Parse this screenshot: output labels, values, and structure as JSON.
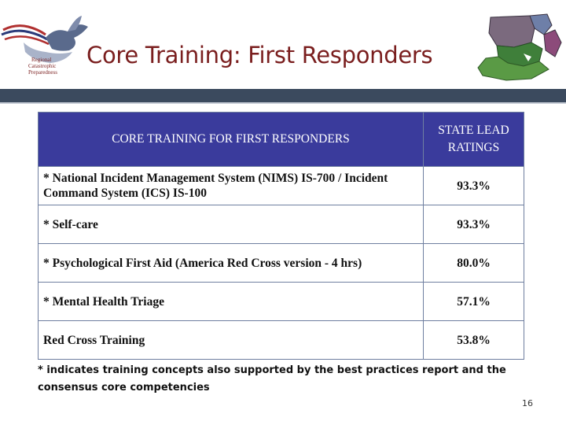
{
  "logo": {
    "lines": [
      "Regional",
      "Catastrophic",
      "Preparedness"
    ]
  },
  "title": "Core Training: First Responders",
  "table": {
    "headers": [
      "CORE TRAINING  FOR FIRST RESPONDERS",
      "STATE LEAD RATINGS"
    ],
    "rows": [
      {
        "training": "* National Incident Management System (NIMS) IS-700 / Incident Command System (ICS) IS-100",
        "rating": "93.3%"
      },
      {
        "training": "* Self-care",
        "rating": "93.3%"
      },
      {
        "training": "* Psychological First Aid (America Red Cross version - 4 hrs)",
        "rating": "80.0%"
      },
      {
        "training": "* Mental Health Triage",
        "rating": "57.1%"
      },
      {
        "training": "Red Cross Training",
        "rating": "53.8%"
      }
    ]
  },
  "footnote": "* indicates training concepts also supported by the best practices report and the consensus core competencies",
  "page_number": "16",
  "colors": {
    "title": "#7a1e1e",
    "banner": "#3b4a5e",
    "table_header": "#3a3b9c"
  }
}
